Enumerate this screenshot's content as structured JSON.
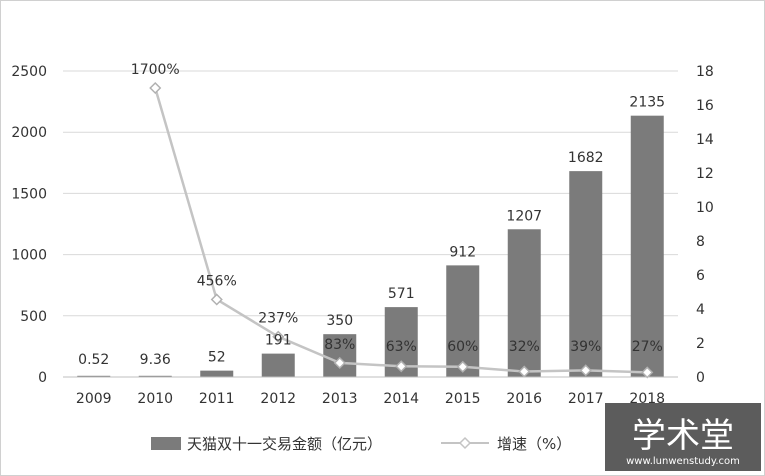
{
  "chart_data": {
    "type": "bar",
    "categories": [
      "2009",
      "2010",
      "2011",
      "2012",
      "2013",
      "2014",
      "2015",
      "2016",
      "2017",
      "2018"
    ],
    "series": [
      {
        "name": "天猫双十一交易金额（亿元）",
        "type": "bar",
        "axis": "left",
        "values": [
          0.52,
          9.36,
          52,
          191,
          350,
          571,
          912,
          1207,
          1682,
          2135
        ],
        "labels": [
          "0.52",
          "9.36",
          "52",
          "191",
          "350",
          "571",
          "912",
          "1207",
          "1682",
          "2135"
        ],
        "color": "#7b7b7b"
      },
      {
        "name": "增速（%）",
        "type": "line",
        "axis": "right",
        "values": [
          null,
          17,
          4.56,
          2.37,
          0.83,
          0.63,
          0.6,
          0.32,
          0.39,
          0.27
        ],
        "labels": [
          "",
          "1700%",
          "456%",
          "237%",
          "83%",
          "63%",
          "60%",
          "32%",
          "39%",
          "27%"
        ],
        "color": "#c4c4c4"
      }
    ],
    "y_left": {
      "min": 0,
      "max": 2500,
      "ticks": [
        0,
        500,
        1000,
        1500,
        2000,
        2500
      ]
    },
    "y_right": {
      "min": 0,
      "max": 18,
      "ticks": [
        0,
        2,
        4,
        6,
        8,
        10,
        12,
        14,
        16,
        18
      ]
    },
    "grid": true,
    "legend_position": "bottom"
  },
  "watermark": {
    "text": "学术堂",
    "url": "www.lunwenstudy.com"
  }
}
